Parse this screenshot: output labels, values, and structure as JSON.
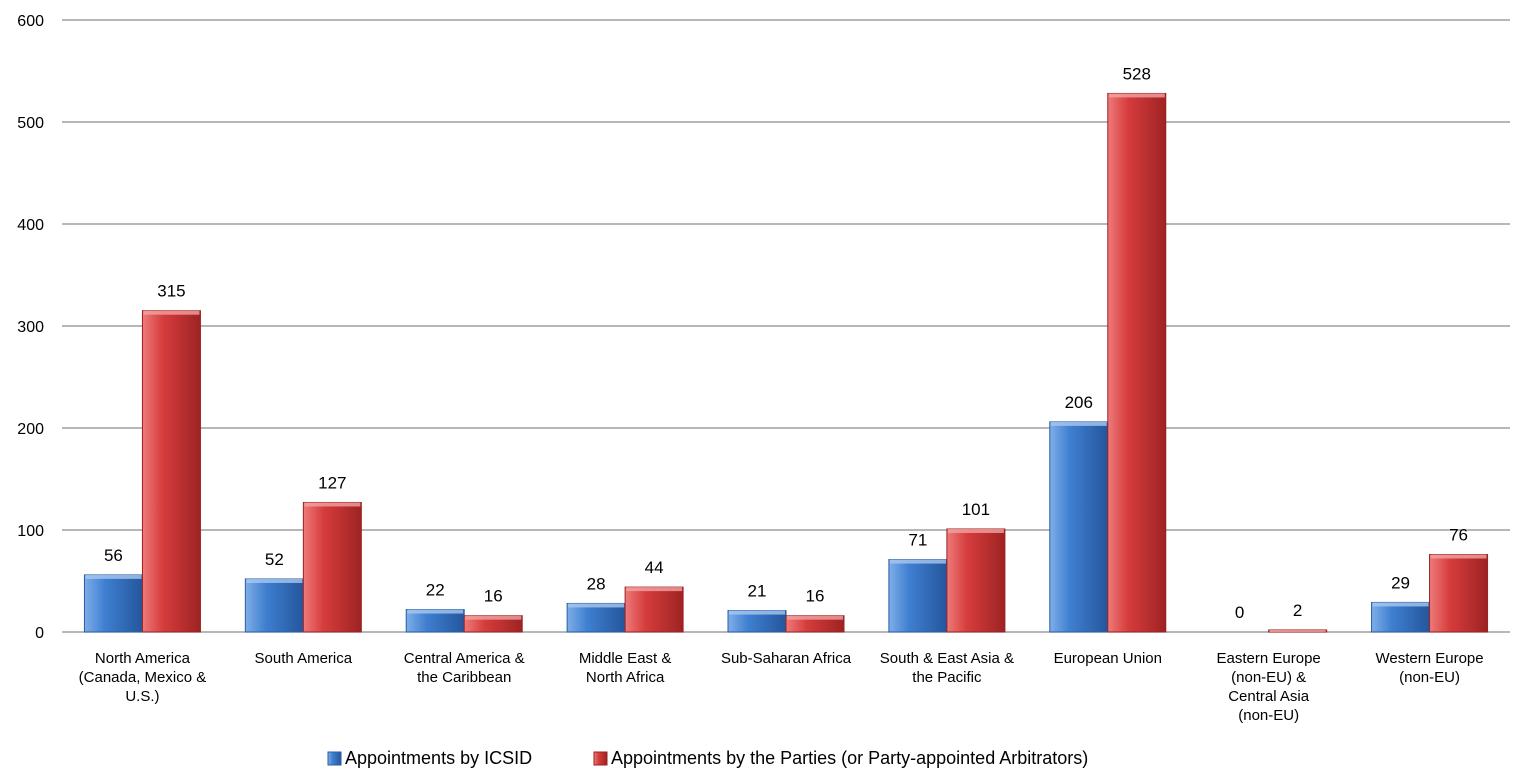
{
  "chart_data": {
    "type": "bar",
    "categories": [
      [
        "North America",
        "(Canada, Mexico &",
        "U.S.)"
      ],
      [
        "South America"
      ],
      [
        "Central America &",
        "the Caribbean"
      ],
      [
        "Middle East &",
        "North Africa"
      ],
      [
        "Sub-Saharan Africa"
      ],
      [
        "South & East Asia &",
        "the Pacific"
      ],
      [
        "European Union"
      ],
      [
        "Eastern Europe",
        "(non-EU) &",
        "Central Asia",
        "(non-EU)"
      ],
      [
        "Western Europe",
        "(non-EU)"
      ]
    ],
    "series": [
      {
        "name": "Appointments by ICSID",
        "color": "#3a78c9",
        "values": [
          56,
          52,
          22,
          28,
          21,
          71,
          206,
          0,
          29
        ]
      },
      {
        "name": "Appointments by the Parties (or Party-appointed Arbitrators)",
        "color": "#d13b3b",
        "values": [
          315,
          127,
          16,
          44,
          16,
          101,
          528,
          2,
          76
        ]
      }
    ],
    "title": "",
    "xlabel": "",
    "ylabel": "",
    "ylim": [
      0,
      600
    ],
    "yticks": [
      0,
      100,
      200,
      300,
      400,
      500,
      600
    ],
    "grid": true,
    "legend": "bottom"
  }
}
